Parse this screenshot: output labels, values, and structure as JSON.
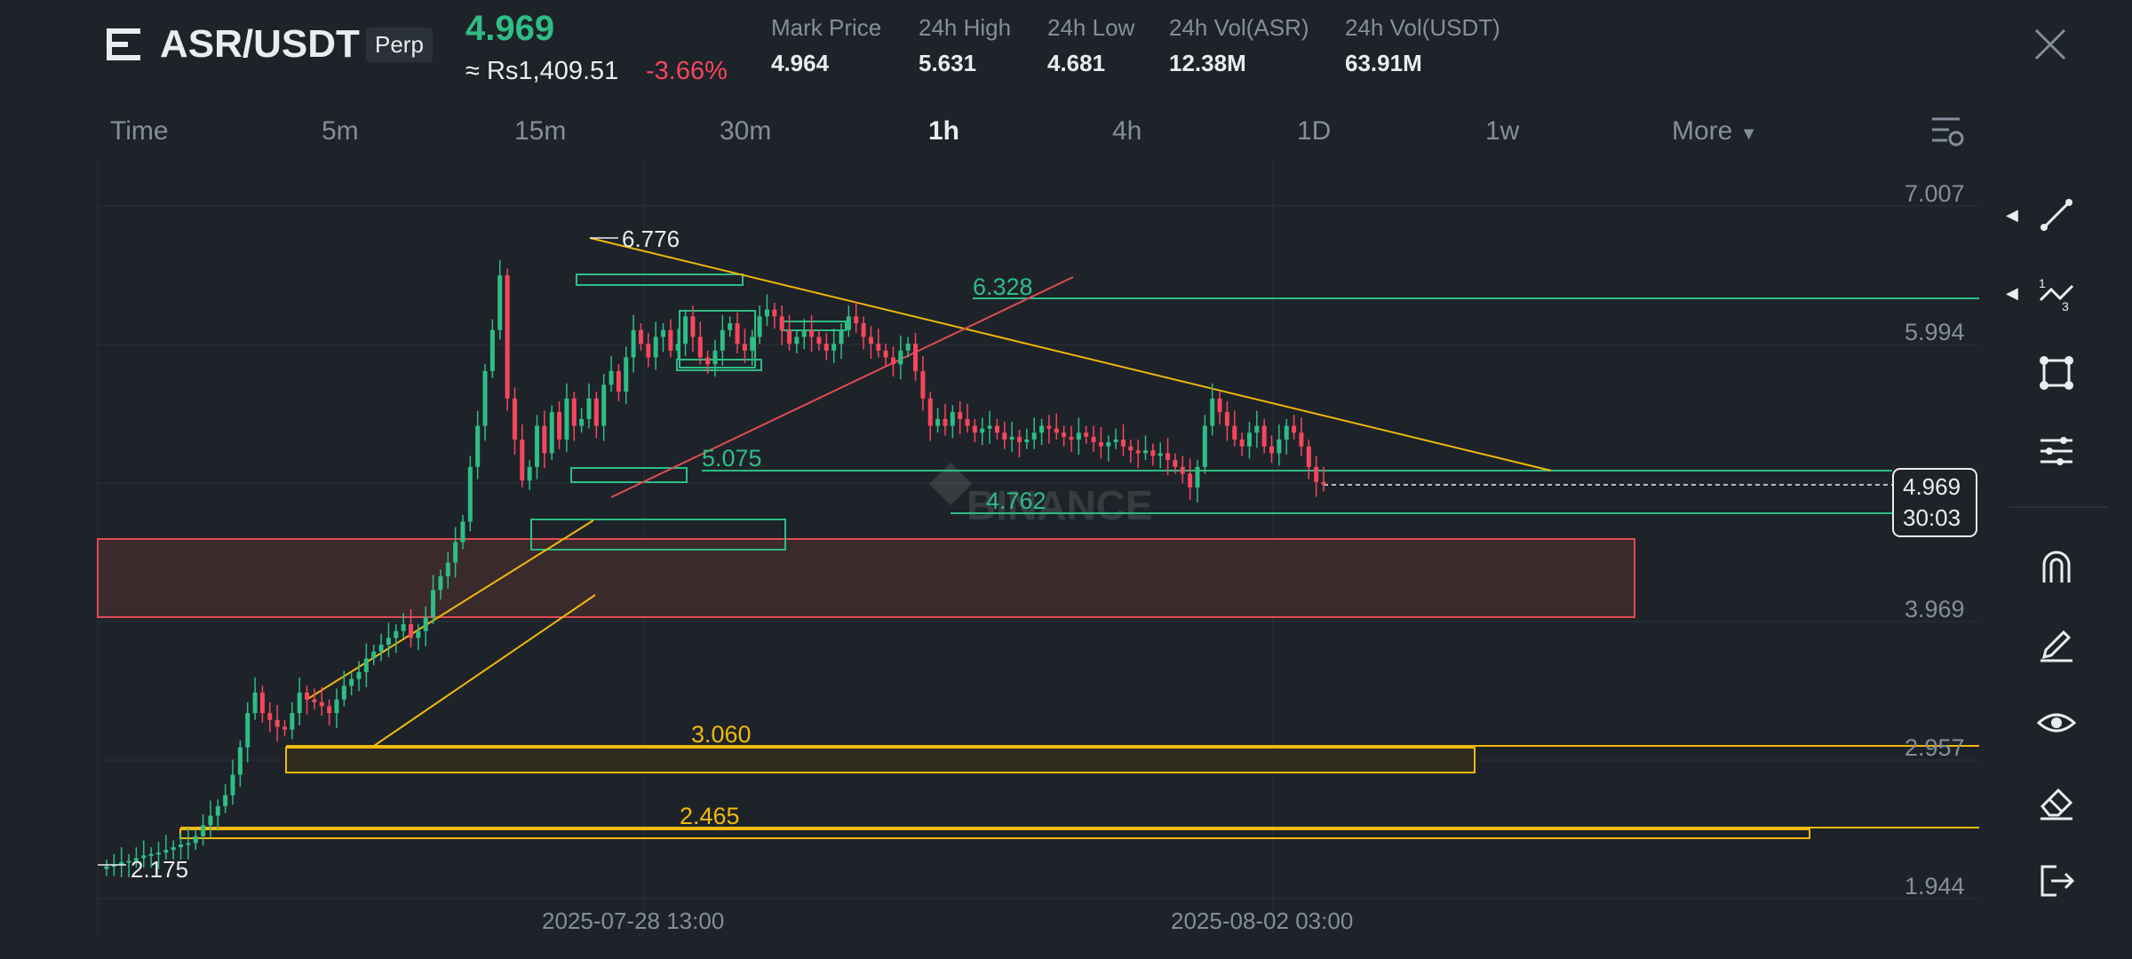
{
  "header": {
    "pair": "ASR/USDT",
    "badge": "Perp",
    "last_price": "4.969",
    "approx_value": "≈ Rs1,409.51",
    "change": "-3.66%",
    "stats": [
      {
        "label": "Mark Price",
        "value": "4.964"
      },
      {
        "label": "24h High",
        "value": "5.631"
      },
      {
        "label": "24h Low",
        "value": "4.681"
      },
      {
        "label": "24h Vol(ASR)",
        "value": "12.38M"
      },
      {
        "label": "24h Vol(USDT)",
        "value": "63.91M"
      }
    ]
  },
  "timeframes": [
    "Time",
    "5m",
    "15m",
    "30m",
    "1h",
    "4h",
    "1D",
    "1w",
    "More"
  ],
  "active_timeframe": "1h",
  "chart_data": {
    "type": "candlestick",
    "y_ticks": [
      "7.007",
      "5.994",
      "3.969",
      "2.957",
      "1.944"
    ],
    "x_ticks": [
      "2025-07-28 13:00",
      "2025-08-02 03:00"
    ],
    "watermark": "BINANCE",
    "current_price": "4.969",
    "countdown": "30:03",
    "annotations": [
      "6.776",
      "6.328",
      "5.075",
      "4.762",
      "3.060",
      "2.465",
      "2.175"
    ],
    "closes": [
      2.18,
      2.19,
      2.21,
      2.22,
      2.24,
      2.26,
      2.27,
      2.28,
      2.3,
      2.32,
      2.34,
      2.35,
      2.4,
      2.48,
      2.55,
      2.62,
      2.7,
      2.85,
      3.05,
      3.3,
      3.45,
      3.3,
      3.25,
      3.2,
      3.18,
      3.3,
      3.45,
      3.4,
      3.38,
      3.35,
      3.3,
      3.4,
      3.5,
      3.55,
      3.6,
      3.7,
      3.75,
      3.8,
      3.85,
      3.9,
      3.95,
      3.85,
      3.9,
      4.0,
      4.2,
      4.3,
      4.4,
      4.55,
      4.7,
      5.1,
      5.4,
      5.8,
      6.1,
      6.5,
      5.6,
      5.3,
      5.0,
      5.1,
      5.4,
      5.2,
      5.5,
      5.3,
      5.6,
      5.4,
      5.45,
      5.6,
      5.4,
      5.7,
      5.8,
      5.65,
      5.9,
      6.1,
      6.0,
      5.9,
      6.05,
      6.1,
      5.95,
      6.0,
      6.2,
      6.05,
      5.9,
      5.85,
      5.95,
      6.1,
      6.15,
      6.0,
      5.95,
      6.05,
      6.2,
      6.25,
      6.2,
      6.1,
      6.0,
      6.05,
      6.1,
      6.05,
      6.0,
      5.95,
      6.0,
      6.1,
      6.2,
      6.15,
      6.05,
      6.0,
      5.95,
      5.9,
      5.85,
      5.95,
      6.0,
      5.8,
      5.6,
      5.4,
      5.45,
      5.4,
      5.5,
      5.45,
      5.4,
      5.35,
      5.38,
      5.4,
      5.35,
      5.3,
      5.32,
      5.28,
      5.3,
      5.35,
      5.4,
      5.38,
      5.35,
      5.32,
      5.3,
      5.35,
      5.32,
      5.28,
      5.25,
      5.28,
      5.3,
      5.25,
      5.22,
      5.2,
      5.22,
      5.18,
      5.2,
      5.15,
      5.1,
      5.05,
      4.95,
      5.1,
      5.4,
      5.6,
      5.5,
      5.4,
      5.3,
      5.25,
      5.35,
      5.4,
      5.25,
      5.2,
      5.3,
      5.4,
      5.35,
      5.25,
      5.1,
      4.99,
      4.97
    ]
  }
}
